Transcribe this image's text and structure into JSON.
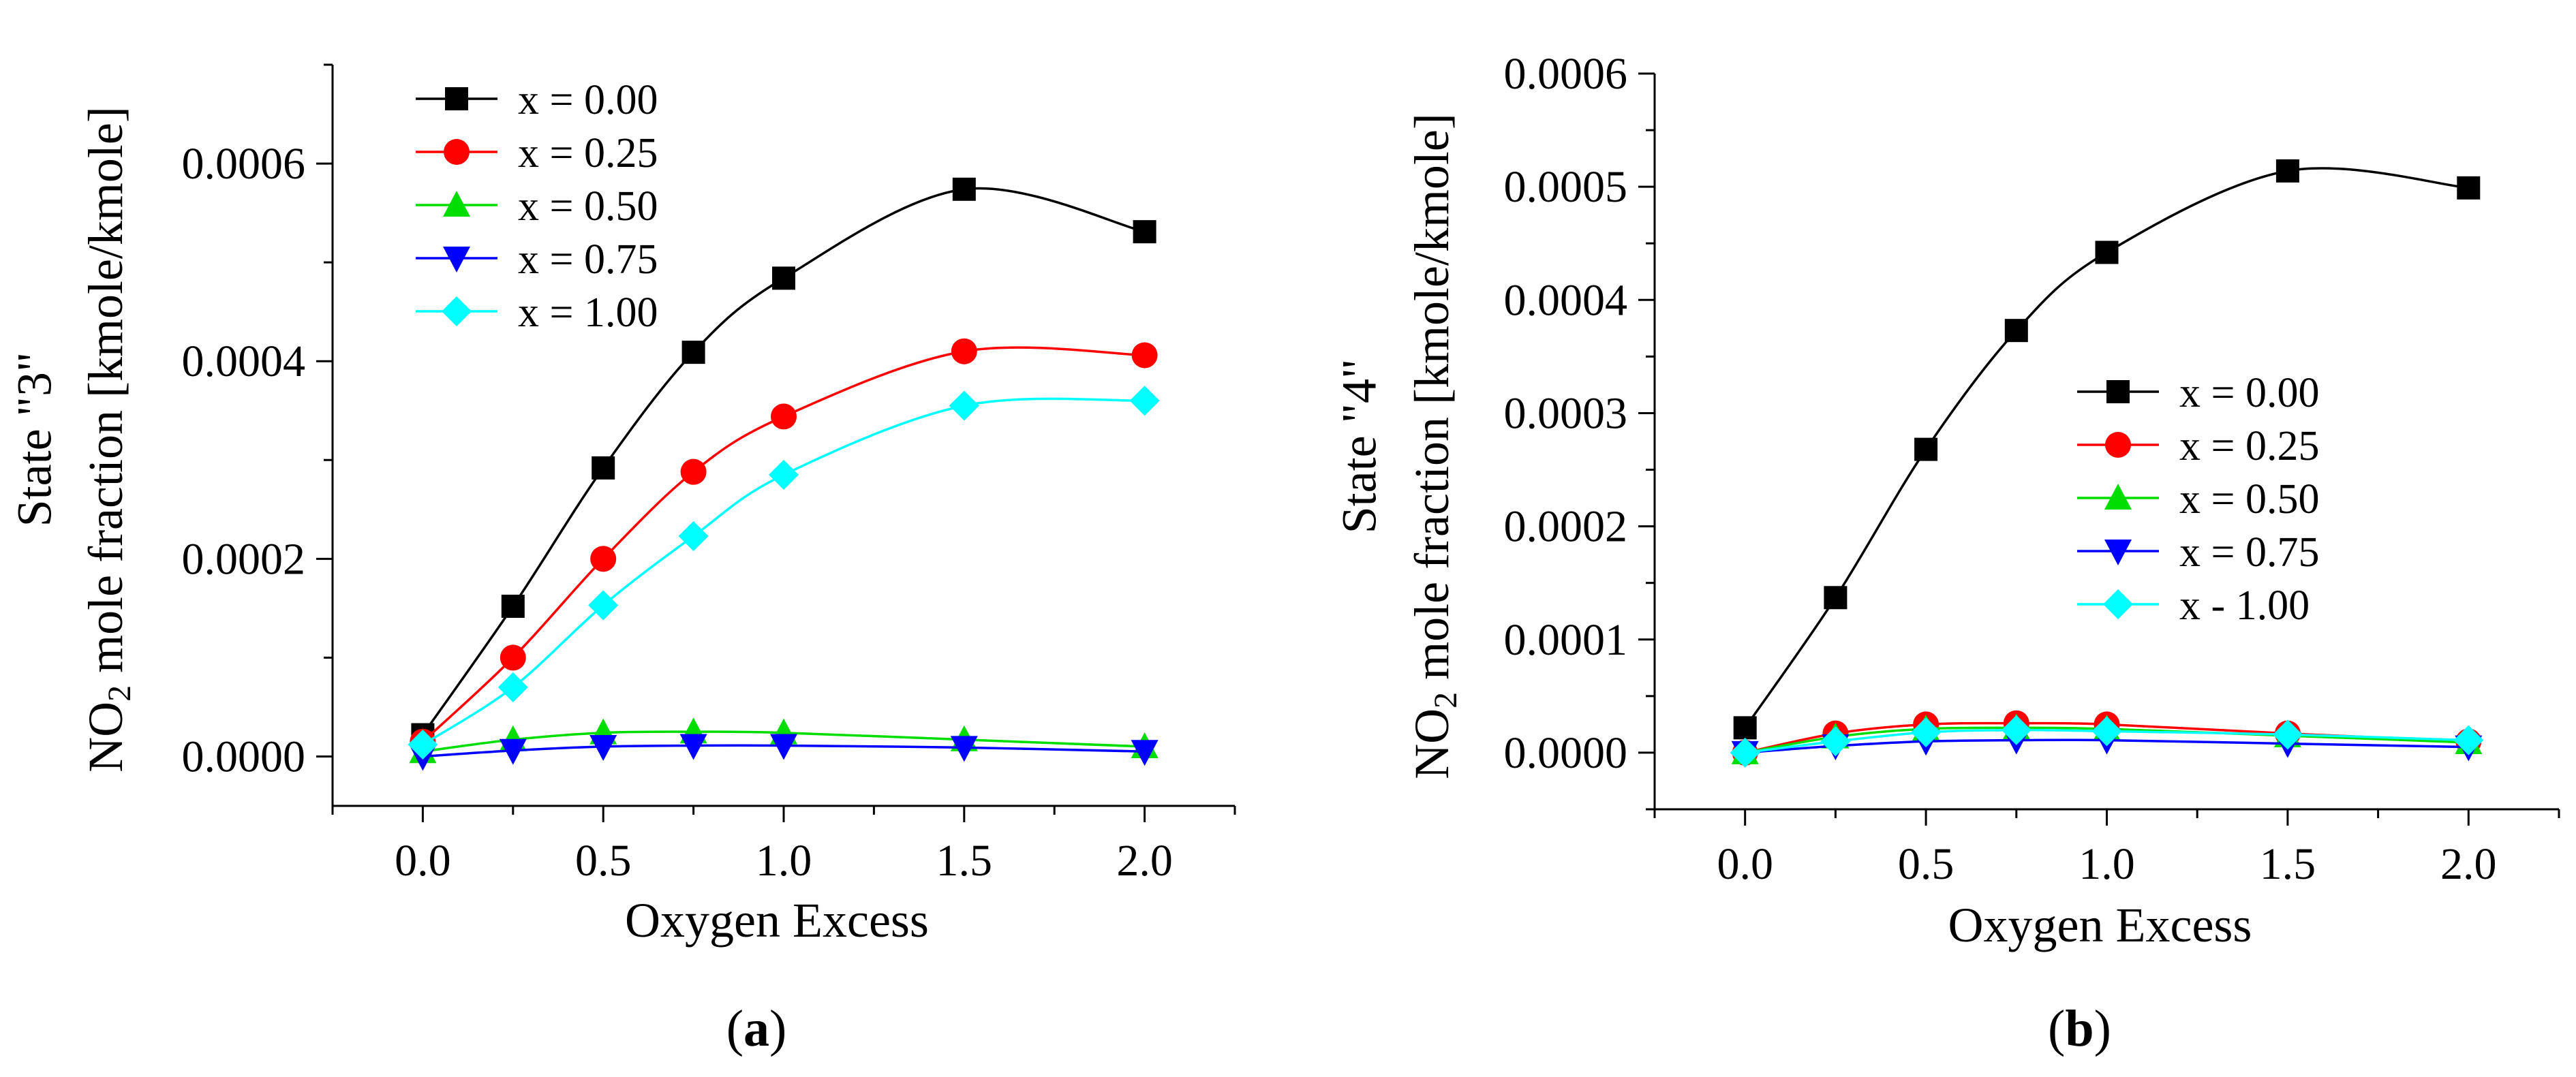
{
  "chart_data": [
    {
      "type": "line",
      "panel_label": "a",
      "xlabel": "Oxygen Excess",
      "ylabel_line1": "State \"3\"",
      "ylabel_line2_prefix": "NO",
      "ylabel_line2_subscript": "2",
      "ylabel_line2_suffix": " mole fraction [kmole/kmole]",
      "xlim": [
        -0.25,
        2.25
      ],
      "ylim": [
        -5e-05,
        0.0007
      ],
      "x_ticks": [
        0.0,
        0.5,
        1.0,
        1.5,
        2.0
      ],
      "x_tick_labels": [
        "0.0",
        "0.5",
        "1.0",
        "1.5",
        "2.0"
      ],
      "y_ticks": [
        0.0,
        0.0002,
        0.0004,
        0.0006
      ],
      "y_tick_labels": [
        "0.0000",
        "0.0002",
        "0.0004",
        "0.0006"
      ],
      "legend_position": "top-left",
      "x": [
        0.0,
        0.25,
        0.5,
        0.75,
        1.0,
        1.5,
        2.0
      ],
      "series": [
        {
          "name": "x = 0.00",
          "color": "#000000",
          "marker": "square",
          "values": [
            2.2e-05,
            0.000152,
            0.000292,
            0.000409,
            0.000484,
            0.000574,
            0.000531
          ]
        },
        {
          "name": "x = 0.25",
          "color": "#ff0000",
          "marker": "circle",
          "values": [
            1.5e-05,
            0.0001,
            0.0002,
            0.000288,
            0.000344,
            0.00041,
            0.000406
          ]
        },
        {
          "name": "x = 0.50",
          "color": "#00dd00",
          "marker": "triangle-up",
          "values": [
            5e-06,
            1.7e-05,
            2.4e-05,
            2.5e-05,
            2.4e-05,
            1.7e-05,
            1e-05
          ]
        },
        {
          "name": "x = 0.75",
          "color": "#0000ff",
          "marker": "triangle-down",
          "values": [
            0.0,
            6e-06,
            1e-05,
            1.1e-05,
            1.1e-05,
            9e-06,
            5e-06
          ]
        },
        {
          "name": "x = 1.00",
          "color": "#00ffff",
          "marker": "diamond",
          "values": [
            1.2e-05,
            7e-05,
            0.000153,
            0.000223,
            0.000285,
            0.000355,
            0.00036
          ]
        }
      ]
    },
    {
      "type": "line",
      "panel_label": "b",
      "xlabel": "Oxygen Excess",
      "ylabel_line1": "State \"4\"",
      "ylabel_line2_prefix": "NO",
      "ylabel_line2_subscript": "2",
      "ylabel_line2_suffix": " mole fraction [kmole/kmole]",
      "xlim": [
        -0.25,
        2.25
      ],
      "ylim": [
        -5e-05,
        0.0006
      ],
      "x_ticks": [
        0.0,
        0.5,
        1.0,
        1.5,
        2.0
      ],
      "x_tick_labels": [
        "0.0",
        "0.5",
        "1.0",
        "1.5",
        "2.0"
      ],
      "y_ticks": [
        0.0,
        0.0001,
        0.0002,
        0.0003,
        0.0004,
        0.0005,
        0.0006
      ],
      "y_tick_labels": [
        "0.0000",
        "0.0001",
        "0.0002",
        "0.0003",
        "0.0004",
        "0.0005",
        "0.0006"
      ],
      "legend_position": "center-right",
      "x": [
        0.0,
        0.25,
        0.5,
        0.75,
        1.0,
        1.5,
        2.0
      ],
      "series": [
        {
          "name": "x = 0.00",
          "color": "#000000",
          "marker": "square",
          "values": [
            2.2e-05,
            0.000137,
            0.000268,
            0.000373,
            0.000442,
            0.000514,
            0.000499
          ]
        },
        {
          "name": "x = 0.25",
          "color": "#ff0000",
          "marker": "circle",
          "values": [
            0.0,
            1.7e-05,
            2.5e-05,
            2.6e-05,
            2.5e-05,
            1.7e-05,
            1e-05
          ]
        },
        {
          "name": "x = 0.50",
          "color": "#00dd00",
          "marker": "triangle-up",
          "values": [
            0.0,
            1.4e-05,
            2.1e-05,
            2.2e-05,
            2.1e-05,
            1.5e-05,
            9e-06
          ]
        },
        {
          "name": "x = 0.75",
          "color": "#0000ff",
          "marker": "triangle-down",
          "values": [
            0.0,
            6e-06,
            1e-05,
            1.1e-05,
            1.1e-05,
            8e-06,
            5e-06
          ]
        },
        {
          "name": "x - 1.00",
          "color": "#00ffff",
          "marker": "diamond",
          "values": [
            0.0,
            1e-05,
            1.8e-05,
            2e-05,
            1.9e-05,
            1.6e-05,
            1.1e-05
          ]
        }
      ]
    }
  ]
}
